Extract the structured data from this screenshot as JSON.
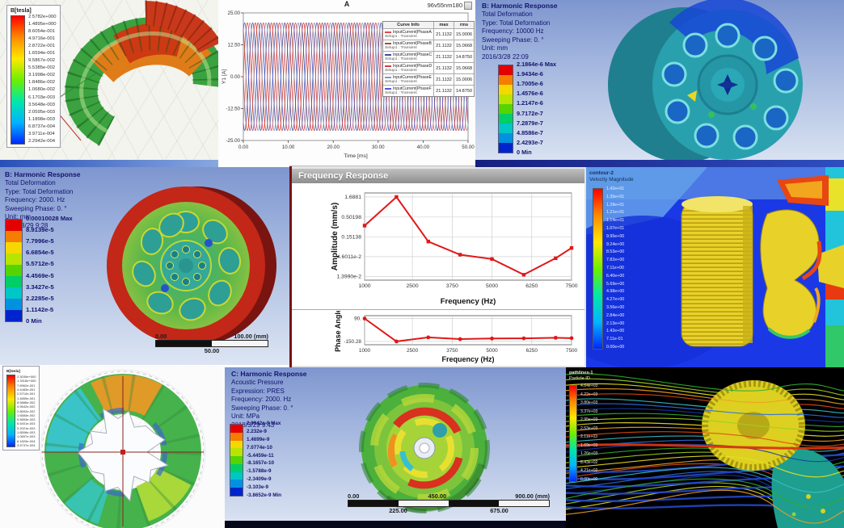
{
  "colors": {
    "ansys_text": "#14146e",
    "bands9": [
      "#e30000",
      "#f57e00",
      "#f5d800",
      "#b9e400",
      "#54d400",
      "#00ce66",
      "#00c6c6",
      "#0092e0",
      "#0024cc"
    ],
    "rainbow": [
      "#ff0000",
      "#ff8a00",
      "#ffe800",
      "#6cf000",
      "#00e8a8",
      "#00b4ff",
      "#0028ff"
    ],
    "curve_red": "#e01818",
    "streamlines": [
      "#2fae2f",
      "#9ccf20",
      "#e8e020",
      "#f0a020",
      "#e04a10",
      "#38c0c8",
      "#2a70e0",
      "#1638a8"
    ]
  },
  "panels": {
    "maxwell_torus": {
      "legend_title": "B[tesla]",
      "legend_values": [
        "2.5782e+000",
        "1.4895e+000",
        "8.6054e-001",
        "4.9716e-001",
        "2.8722e-001",
        "1.6594e-001",
        "9.5867e-002",
        "5.5385e-002",
        "3.1998e-002",
        "1.8486e-002",
        "1.0680e-002",
        "6.1703e-003",
        "3.5648e-003",
        "2.0595e-003",
        "1.1898e-003",
        "6.8737e-004",
        "3.9711e-004",
        "2.2942e-004"
      ]
    },
    "current_plot": {
      "table": {
        "headers": [
          "Curve Info",
          "max",
          "rms"
        ],
        "rows": [
          {
            "name": "InputCurrent(PhaseA)",
            "sub": "Setup1 : Transient",
            "max": "21.1132",
            "rms": "15.0006",
            "color": "#e04545"
          },
          {
            "name": "InputCurrent(PhaseB)",
            "sub": "Setup1 : Transient",
            "max": "21.1132",
            "rms": "15.0668",
            "color": "#a34d3e"
          },
          {
            "name": "InputCurrent(PhaseC)",
            "sub": "Setup1 : Transient",
            "max": "21.1132",
            "rms": "14.8750",
            "color": "#3b4da0"
          },
          {
            "name": "InputCurrent(PhaseD)",
            "sub": "Setup1 : Transient",
            "max": "21.1132",
            "rms": "15.0668",
            "color": "#dd3c3c"
          },
          {
            "name": "InputCurrent(PhaseE)",
            "sub": "Setup1 : Transient",
            "max": "21.1132",
            "rms": "15.0006",
            "color": "#8d93b8"
          },
          {
            "name": "InputCurrent(PhaseF)",
            "sub": "Setup1 : Transient",
            "max": "21.1132",
            "rms": "14.8750",
            "color": "#4a5fc4"
          }
        ]
      }
    },
    "harmonic_b_10000": {
      "header": [
        "B: Harmonic Response",
        "Total Deformation",
        "Type: Total Deformation",
        "Frequency: 10000 Hz",
        "Sweeping Phase: 0. °",
        "Unit: mm",
        "2016/3/28 22:09"
      ],
      "legend_values": [
        "2.1864e-6 Max",
        "1.9434e-6",
        "1.7005e-6",
        "1.4576e-6",
        "1.2147e-6",
        "9.7172e-7",
        "7.2879e-7",
        "4.8586e-7",
        "2.4293e-7",
        "0 Min"
      ]
    },
    "harmonic_b_2000": {
      "header": [
        "B: Harmonic Response",
        "Total Deformation",
        "Type: Total Deformation",
        "Frequency: 2000. Hz",
        "Sweeping Phase: 0. °",
        "Unit: mm",
        "2018/3/29 9:28"
      ],
      "legend_values": [
        "0.00010028 Max",
        "8.9139e-5",
        "7.7996e-5",
        "6.6854e-5",
        "5.5712e-5",
        "4.4569e-5",
        "3.3427e-5",
        "2.2285e-5",
        "1.1142e-5",
        "0 Min"
      ],
      "ruler": {
        "top": [
          "0.00",
          "100.00 (mm)"
        ],
        "bottom": [
          "50.00"
        ],
        "segments": 2
      }
    },
    "freq_response": {
      "title": "Frequency Response"
    },
    "cfd_velocity": {
      "legend_title_lines": [
        "contour-2",
        "Velocity Magnitude"
      ],
      "legend_values": [
        "1.42e+01",
        "1.35e+01",
        "1.28e+01",
        "1.21e+01",
        "1.14e+01",
        "1.07e+01",
        "9.95e+00",
        "9.24e+00",
        "8.53e+00",
        "7.82e+00",
        "7.11e+00",
        "6.40e+00",
        "5.69e+00",
        "4.98e+00",
        "4.27e+00",
        "3.56e+00",
        "2.84e+00",
        "2.13e+00",
        "1.42e+00",
        "7.11e-01",
        "0.00e+00"
      ]
    },
    "rotor_field": {
      "legend_title": "B[tesla]",
      "legend_values": [
        "2.3039e+000",
        "1.3316e+000",
        "7.6962e-001",
        "4.4483e-001",
        "2.5710e-001",
        "1.4859e-001",
        "8.5886e-002",
        "4.9642e-002",
        "2.8692e-002",
        "1.6584e-002",
        "9.5853e-003",
        "5.5401e-003",
        "3.2021e-003",
        "1.8508e-003",
        "1.0697e-003",
        "6.1829e-004",
        "3.5737e-004"
      ]
    },
    "acoustic": {
      "header": [
        "C: Harmonic Response",
        "Acoustic Pressure",
        "Expression: PRES",
        "Frequency: 2000. Hz",
        "Sweeping Phase: 0. °",
        "Unit: MPa",
        "2018/3/29 9:43"
      ],
      "legend_values": [
        "2.9942e-9 Max",
        "2.232e-9",
        "1.4699e-9",
        "7.0774e-10",
        "-5.4459e-11",
        "-8.1657e-10",
        "-1.5788e-9",
        "-2.3409e-9",
        "-3.103e-9",
        "-3.8652e-9 Min"
      ],
      "ruler": {
        "top": [
          "0.00",
          "450.00",
          "900.00 (mm)"
        ],
        "bottom": [
          "225.00",
          "675.00"
        ],
        "segments": 4
      }
    },
    "pathlines": {
      "legend_title_lines": [
        "pathlines-1",
        "Particle ID"
      ],
      "legend_values": [
        "4.64e+03",
        "4.22e+03",
        "3.80e+03",
        "3.37e+03",
        "2.95e+03",
        "2.53e+03",
        "2.11e+03",
        "1.69e+03",
        "1.26e+03",
        "8.43e+02",
        "4.21e+02",
        "0.00e+00"
      ]
    }
  },
  "chart_data": [
    {
      "id": "phase_currents",
      "type": "line",
      "title": "A",
      "corner_label": "96v55nm180",
      "xlabel": "Time [ms]",
      "ylabel": "Y1 [A]",
      "xlim": [
        0,
        50
      ],
      "ylim": [
        -25,
        25
      ],
      "xticks": [
        0,
        10,
        20,
        30,
        40,
        50
      ],
      "yticks": [
        25,
        12.5,
        0,
        -12.5,
        -25
      ],
      "xtick_labels": [
        "0.00",
        "10.00",
        "20.00",
        "30.00",
        "40.00",
        "50.00"
      ],
      "ytick_labels": [
        "25.00",
        "12.50",
        "0.00",
        "-12.50",
        "-25.00"
      ],
      "amplitude": 21.1132,
      "cycles": 14,
      "series": [
        {
          "name": "InputCurrent(PhaseA)",
          "phase_deg": 0,
          "color": "#e04545"
        },
        {
          "name": "InputCurrent(PhaseB)",
          "phase_deg": 120,
          "color": "#a34d3e"
        },
        {
          "name": "InputCurrent(PhaseC)",
          "phase_deg": 240,
          "color": "#3b4da0"
        },
        {
          "name": "InputCurrent(PhaseD)",
          "phase_deg": 180,
          "color": "#dd3c3c"
        },
        {
          "name": "InputCurrent(PhaseE)",
          "phase_deg": 300,
          "color": "#8d93b8"
        },
        {
          "name": "InputCurrent(PhaseF)",
          "phase_deg": 60,
          "color": "#4a5fc4"
        }
      ],
      "legend_position": "right-overlay-table",
      "grid": false
    },
    {
      "id": "freq_response_amplitude",
      "type": "line",
      "title": "Frequency Response",
      "xlabel": "Frequency (Hz)",
      "ylabel": "Amplitude (mm/s)",
      "yscale": "log",
      "xticks": [
        1000,
        2500,
        3750,
        5000,
        6250,
        7500
      ],
      "xtick_labels": [
        "1000",
        "2500",
        "3750",
        "5000",
        "6250",
        "7500"
      ],
      "yticks": [
        1.6881,
        0.50198,
        0.15138,
        0.046011,
        0.01399
      ],
      "ytick_labels": [
        "1.6881",
        "0.50198",
        "0.15138",
        "4.6011e-2",
        "1.3990e-2"
      ],
      "x": [
        1000,
        2000,
        3000,
        4000,
        5000,
        6000,
        7000,
        7500
      ],
      "y": [
        0.3,
        1.6881,
        0.115,
        0.052,
        0.04,
        0.0155,
        0.042,
        0.078
      ],
      "color": "#e01818",
      "grid": true
    },
    {
      "id": "freq_response_phase",
      "type": "line",
      "xlabel": "Frequency (Hz)",
      "ylabel": "Phase Angle",
      "xticks": [
        1000,
        2500,
        3750,
        5000,
        6250,
        7500
      ],
      "xtick_labels": [
        "1000",
        "2500",
        "3750",
        "5000",
        "6250",
        "7500"
      ],
      "yticks": [
        90,
        -150.28
      ],
      "ytick_labels": [
        "90.",
        "-150.28"
      ],
      "x": [
        1000,
        2000,
        3000,
        4000,
        5000,
        6000,
        7000,
        7500
      ],
      "y": [
        90,
        -150.28,
        -108,
        -126,
        -120,
        -118,
        -112,
        -116
      ],
      "color": "#e01818",
      "grid": true
    }
  ]
}
